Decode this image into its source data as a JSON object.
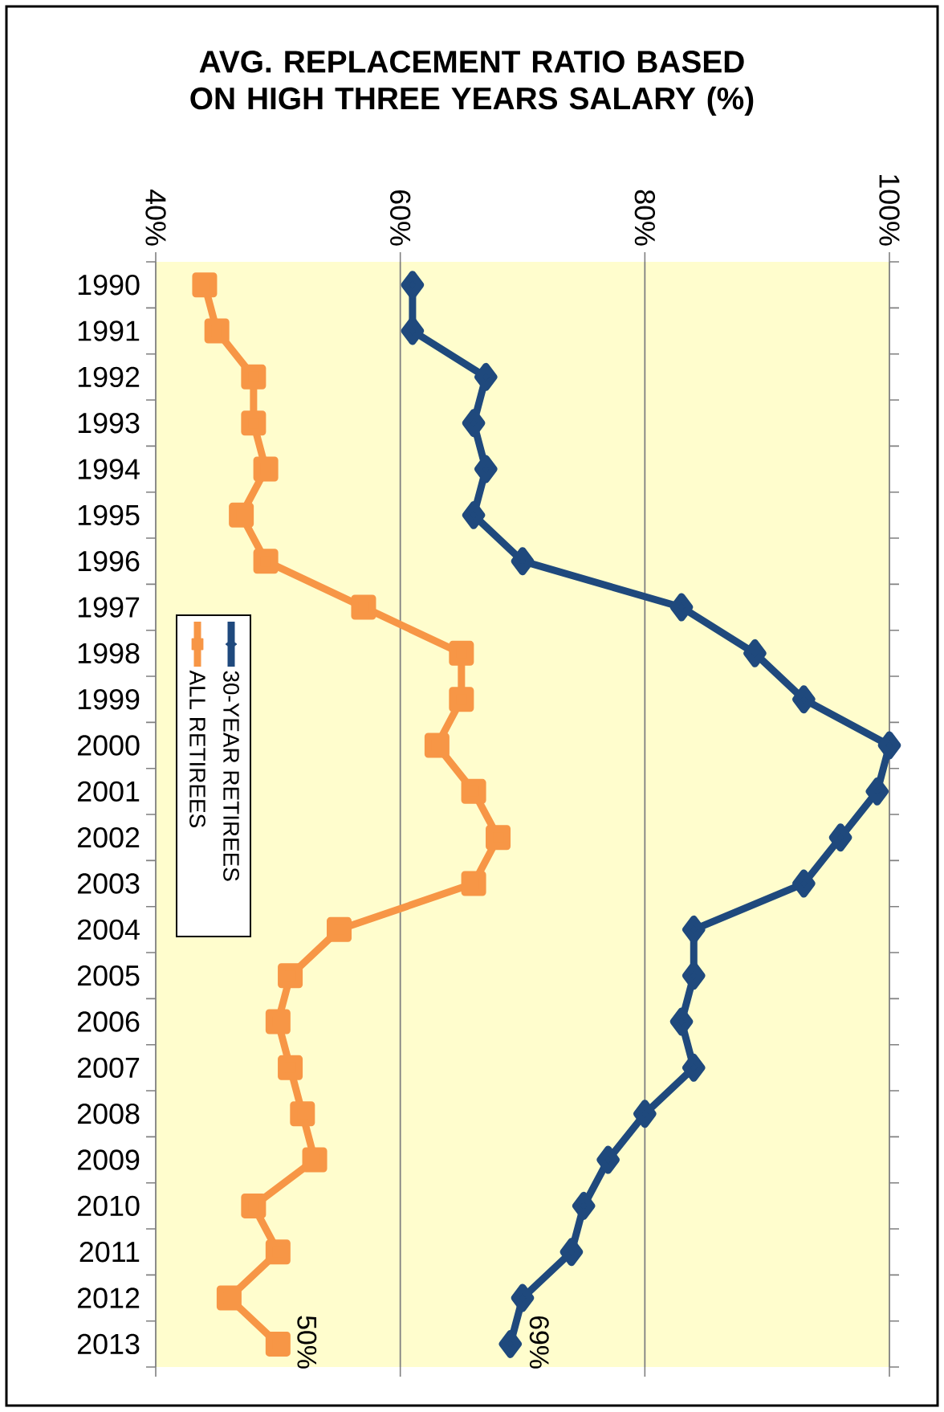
{
  "chart_data": {
    "type": "line",
    "orientation": "horizontal",
    "title": "AVG. REPLACEMENT RATIO BASED ON HIGH THREE YEARS SALARY (%)",
    "categories": [
      "1990",
      "1991",
      "1992",
      "1993",
      "1994",
      "1995",
      "1996",
      "1997",
      "1998",
      "1999",
      "2000",
      "2001",
      "2002",
      "2003",
      "2004",
      "2005",
      "2006",
      "2007",
      "2008",
      "2009",
      "2010",
      "2011",
      "2012",
      "2013"
    ],
    "series": [
      {
        "name": "30-YEAR RETIREES",
        "color": "#1f497d",
        "marker": "diamond",
        "values": [
          61,
          61,
          67,
          66,
          67,
          66,
          70,
          83,
          89,
          93,
          100,
          99,
          96,
          93,
          84,
          84,
          83,
          84,
          80,
          77,
          75,
          74,
          70,
          69
        ],
        "value_labels": [
          null,
          null,
          null,
          null,
          null,
          null,
          null,
          null,
          null,
          null,
          null,
          null,
          null,
          null,
          null,
          null,
          null,
          null,
          null,
          null,
          null,
          null,
          null,
          "69%"
        ]
      },
      {
        "name": "ALL RETIREES",
        "color": "#f79646",
        "marker": "square",
        "values": [
          44,
          45,
          48,
          48,
          49,
          47,
          49,
          57,
          65,
          65,
          63,
          66,
          68,
          66,
          55,
          51,
          50,
          51,
          52,
          53,
          48,
          50,
          46,
          50
        ],
        "value_labels": [
          null,
          null,
          null,
          null,
          null,
          null,
          null,
          null,
          null,
          null,
          null,
          null,
          null,
          null,
          null,
          null,
          null,
          null,
          null,
          null,
          null,
          null,
          null,
          "50%"
        ]
      }
    ],
    "xlim": [
      40,
      100
    ],
    "xticks": [
      {
        "value": 40,
        "label": "40%"
      },
      {
        "value": 60,
        "label": "60%"
      },
      {
        "value": 80,
        "label": "80%"
      },
      {
        "value": 100,
        "label": "100%"
      }
    ],
    "grid": "x",
    "legend": "left",
    "line_style": "solid"
  }
}
